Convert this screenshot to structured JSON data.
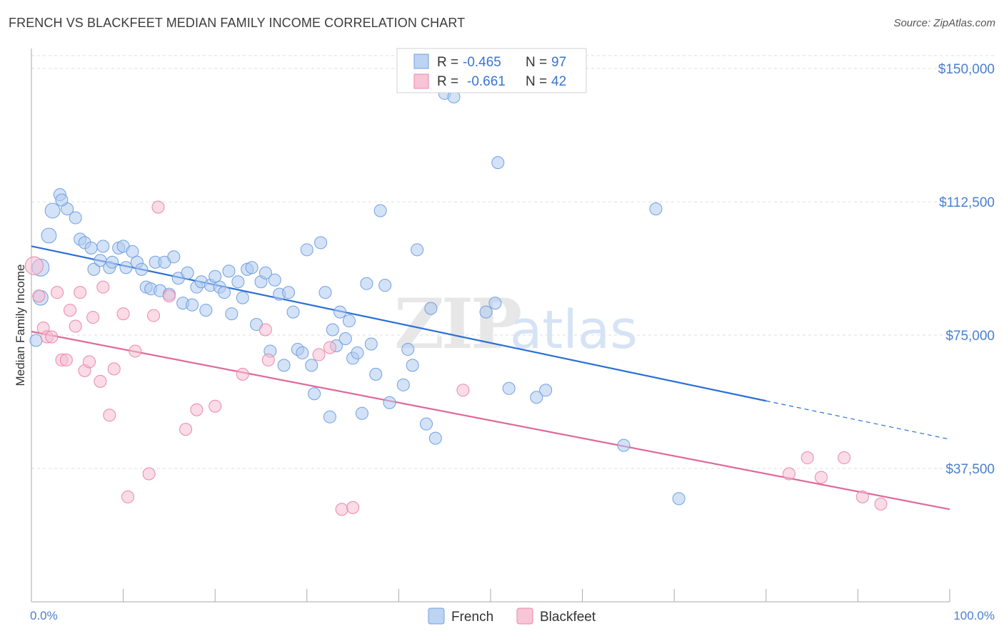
{
  "header": {
    "title": "FRENCH VS BLACKFEET MEDIAN FAMILY INCOME CORRELATION CHART",
    "source": "Source: ZipAtlas.com"
  },
  "watermark": {
    "zip": "ZIP",
    "atlas": "atlas"
  },
  "legend": {
    "r_label": "R =",
    "n_label": "N =",
    "rows": [
      {
        "series": "French",
        "r": "-0.465",
        "n": "97",
        "color": "#6fa0e0"
      },
      {
        "series": "Blackfeet",
        "r": "-0.661",
        "n": "42",
        "color": "#e889a8"
      }
    ]
  },
  "chart_data": {
    "type": "scatter",
    "title": "FRENCH VS BLACKFEET MEDIAN FAMILY INCOME CORRELATION CHART",
    "xlabel": "",
    "ylabel": "Median Family Income",
    "xlim": [
      0,
      100
    ],
    "ylim": [
      0,
      150000
    ],
    "x_tick_labels": [
      "0.0%",
      "100.0%"
    ],
    "y_ticks": [
      37500,
      75000,
      112500,
      150000
    ],
    "y_tick_labels": [
      "$37,500",
      "$75,000",
      "$112,500",
      "$150,000"
    ],
    "grid": true,
    "legend_position": "top-center",
    "series": [
      {
        "name": "French",
        "color": "#6fa0e0",
        "trend": {
          "x": [
            0,
            80
          ],
          "y": [
            100000,
            56500
          ],
          "dashed_to": [
            100,
            45700
          ]
        },
        "points": [
          {
            "x": 1.0,
            "y": 94000,
            "s": 2
          },
          {
            "x": 1.0,
            "y": 85500,
            "s": 1.5
          },
          {
            "x": 0.5,
            "y": 73500,
            "s": 1
          },
          {
            "x": 2.3,
            "y": 110000,
            "s": 1.5
          },
          {
            "x": 1.9,
            "y": 103000,
            "s": 1.5
          },
          {
            "x": 3.1,
            "y": 114500,
            "s": 1
          },
          {
            "x": 3.9,
            "y": 110500,
            "s": 1
          },
          {
            "x": 4.8,
            "y": 108000,
            "s": 1
          },
          {
            "x": 3.3,
            "y": 113000,
            "s": 1
          },
          {
            "x": 5.3,
            "y": 102000,
            "s": 1
          },
          {
            "x": 5.8,
            "y": 101000,
            "s": 1
          },
          {
            "x": 6.5,
            "y": 99500,
            "s": 1
          },
          {
            "x": 6.8,
            "y": 93500,
            "s": 1
          },
          {
            "x": 7.5,
            "y": 96000,
            "s": 1
          },
          {
            "x": 7.8,
            "y": 100000,
            "s": 1
          },
          {
            "x": 8.5,
            "y": 94000,
            "s": 1
          },
          {
            "x": 8.8,
            "y": 95500,
            "s": 1
          },
          {
            "x": 9.5,
            "y": 99500,
            "s": 1
          },
          {
            "x": 10.0,
            "y": 100000,
            "s": 1
          },
          {
            "x": 10.3,
            "y": 94000,
            "s": 1
          },
          {
            "x": 11.0,
            "y": 98500,
            "s": 1
          },
          {
            "x": 11.5,
            "y": 95500,
            "s": 1
          },
          {
            "x": 12.0,
            "y": 93500,
            "s": 1
          },
          {
            "x": 12.5,
            "y": 88500,
            "s": 1
          },
          {
            "x": 13.0,
            "y": 88000,
            "s": 1
          },
          {
            "x": 13.5,
            "y": 95500,
            "s": 1
          },
          {
            "x": 14.0,
            "y": 87500,
            "s": 1
          },
          {
            "x": 14.5,
            "y": 95500,
            "s": 1
          },
          {
            "x": 15.0,
            "y": 86500,
            "s": 1
          },
          {
            "x": 15.5,
            "y": 97000,
            "s": 1
          },
          {
            "x": 16.0,
            "y": 91000,
            "s": 1
          },
          {
            "x": 16.5,
            "y": 84000,
            "s": 1
          },
          {
            "x": 17.0,
            "y": 92500,
            "s": 1
          },
          {
            "x": 17.5,
            "y": 83500,
            "s": 1
          },
          {
            "x": 18.0,
            "y": 88500,
            "s": 1
          },
          {
            "x": 18.5,
            "y": 90000,
            "s": 1
          },
          {
            "x": 19.0,
            "y": 82000,
            "s": 1
          },
          {
            "x": 19.5,
            "y": 89000,
            "s": 1
          },
          {
            "x": 20.0,
            "y": 91500,
            "s": 1
          },
          {
            "x": 20.5,
            "y": 88500,
            "s": 1
          },
          {
            "x": 21.0,
            "y": 87000,
            "s": 1
          },
          {
            "x": 21.5,
            "y": 93000,
            "s": 1
          },
          {
            "x": 21.8,
            "y": 81000,
            "s": 1
          },
          {
            "x": 22.5,
            "y": 90000,
            "s": 1
          },
          {
            "x": 23.0,
            "y": 85500,
            "s": 1
          },
          {
            "x": 23.5,
            "y": 93500,
            "s": 1
          },
          {
            "x": 24.0,
            "y": 94000,
            "s": 1
          },
          {
            "x": 24.5,
            "y": 78000,
            "s": 1
          },
          {
            "x": 25.0,
            "y": 90000,
            "s": 1
          },
          {
            "x": 25.5,
            "y": 92500,
            "s": 1
          },
          {
            "x": 26.0,
            "y": 70500,
            "s": 1
          },
          {
            "x": 26.5,
            "y": 90500,
            "s": 1
          },
          {
            "x": 27.0,
            "y": 86500,
            "s": 1
          },
          {
            "x": 27.5,
            "y": 66500,
            "s": 1
          },
          {
            "x": 28.0,
            "y": 87000,
            "s": 1
          },
          {
            "x": 28.5,
            "y": 81500,
            "s": 1
          },
          {
            "x": 29.0,
            "y": 71000,
            "s": 1
          },
          {
            "x": 29.5,
            "y": 70000,
            "s": 1
          },
          {
            "x": 30.0,
            "y": 99000,
            "s": 1
          },
          {
            "x": 30.5,
            "y": 66500,
            "s": 1
          },
          {
            "x": 30.8,
            "y": 58500,
            "s": 1
          },
          {
            "x": 31.5,
            "y": 101000,
            "s": 1
          },
          {
            "x": 32.0,
            "y": 87000,
            "s": 1
          },
          {
            "x": 32.5,
            "y": 52000,
            "s": 1
          },
          {
            "x": 32.8,
            "y": 76500,
            "s": 1
          },
          {
            "x": 33.2,
            "y": 72000,
            "s": 1
          },
          {
            "x": 33.6,
            "y": 81500,
            "s": 1
          },
          {
            "x": 34.2,
            "y": 74000,
            "s": 1
          },
          {
            "x": 34.6,
            "y": 79000,
            "s": 1
          },
          {
            "x": 35.0,
            "y": 68500,
            "s": 1
          },
          {
            "x": 35.5,
            "y": 70000,
            "s": 1
          },
          {
            "x": 36.0,
            "y": 53000,
            "s": 1
          },
          {
            "x": 36.5,
            "y": 89500,
            "s": 1
          },
          {
            "x": 37.0,
            "y": 72500,
            "s": 1
          },
          {
            "x": 37.5,
            "y": 64000,
            "s": 1
          },
          {
            "x": 38.0,
            "y": 110000,
            "s": 1
          },
          {
            "x": 38.5,
            "y": 89000,
            "s": 1
          },
          {
            "x": 39.0,
            "y": 56000,
            "s": 1
          },
          {
            "x": 40.5,
            "y": 61000,
            "s": 1
          },
          {
            "x": 41.0,
            "y": 71000,
            "s": 1
          },
          {
            "x": 41.5,
            "y": 66500,
            "s": 1
          },
          {
            "x": 42.0,
            "y": 99000,
            "s": 1
          },
          {
            "x": 43.5,
            "y": 82500,
            "s": 1
          },
          {
            "x": 43.0,
            "y": 50000,
            "s": 1
          },
          {
            "x": 44.0,
            "y": 46000,
            "s": 1
          },
          {
            "x": 45.0,
            "y": 143000,
            "s": 1
          },
          {
            "x": 46.0,
            "y": 142000,
            "s": 1
          },
          {
            "x": 49.5,
            "y": 81500,
            "s": 1
          },
          {
            "x": 50.5,
            "y": 84000,
            "s": 1
          },
          {
            "x": 50.8,
            "y": 123500,
            "s": 1
          },
          {
            "x": 52.0,
            "y": 60000,
            "s": 1
          },
          {
            "x": 55.0,
            "y": 57500,
            "s": 1
          },
          {
            "x": 56.0,
            "y": 59500,
            "s": 1
          },
          {
            "x": 64.5,
            "y": 44000,
            "s": 1
          },
          {
            "x": 68.0,
            "y": 110500,
            "s": 1
          },
          {
            "x": 70.5,
            "y": 29000,
            "s": 1
          }
        ]
      },
      {
        "name": "Blackfeet",
        "color": "#e889a8",
        "trend": {
          "x": [
            0,
            100
          ],
          "y": [
            76000,
            26000
          ]
        },
        "points": [
          {
            "x": 0.3,
            "y": 94500,
            "s": 2.2
          },
          {
            "x": 0.8,
            "y": 86000,
            "s": 1
          },
          {
            "x": 1.3,
            "y": 77000,
            "s": 1
          },
          {
            "x": 1.7,
            "y": 74500,
            "s": 1
          },
          {
            "x": 2.2,
            "y": 74500,
            "s": 1
          },
          {
            "x": 2.8,
            "y": 87000,
            "s": 1
          },
          {
            "x": 3.3,
            "y": 68000,
            "s": 1
          },
          {
            "x": 3.8,
            "y": 68000,
            "s": 1
          },
          {
            "x": 4.2,
            "y": 82000,
            "s": 1
          },
          {
            "x": 4.8,
            "y": 77500,
            "s": 1
          },
          {
            "x": 5.3,
            "y": 87000,
            "s": 1
          },
          {
            "x": 5.8,
            "y": 65000,
            "s": 1
          },
          {
            "x": 6.3,
            "y": 67500,
            "s": 1
          },
          {
            "x": 6.7,
            "y": 80000,
            "s": 1
          },
          {
            "x": 7.5,
            "y": 62000,
            "s": 1
          },
          {
            "x": 7.8,
            "y": 88500,
            "s": 1
          },
          {
            "x": 8.5,
            "y": 52500,
            "s": 1
          },
          {
            "x": 9.0,
            "y": 65500,
            "s": 1
          },
          {
            "x": 10.0,
            "y": 81000,
            "s": 1
          },
          {
            "x": 10.5,
            "y": 29500,
            "s": 1
          },
          {
            "x": 11.3,
            "y": 70500,
            "s": 1
          },
          {
            "x": 12.8,
            "y": 36000,
            "s": 1
          },
          {
            "x": 13.3,
            "y": 80500,
            "s": 1
          },
          {
            "x": 13.8,
            "y": 111000,
            "s": 1
          },
          {
            "x": 15.0,
            "y": 86000,
            "s": 1
          },
          {
            "x": 16.8,
            "y": 48500,
            "s": 1
          },
          {
            "x": 18.0,
            "y": 54000,
            "s": 1
          },
          {
            "x": 20.0,
            "y": 55000,
            "s": 1
          },
          {
            "x": 23.0,
            "y": 64000,
            "s": 1
          },
          {
            "x": 25.5,
            "y": 76500,
            "s": 1
          },
          {
            "x": 25.8,
            "y": 68000,
            "s": 1
          },
          {
            "x": 31.3,
            "y": 69500,
            "s": 1
          },
          {
            "x": 32.5,
            "y": 71500,
            "s": 1
          },
          {
            "x": 33.8,
            "y": 26000,
            "s": 1
          },
          {
            "x": 35.0,
            "y": 26500,
            "s": 1
          },
          {
            "x": 47.0,
            "y": 59500,
            "s": 1
          },
          {
            "x": 82.5,
            "y": 36000,
            "s": 1
          },
          {
            "x": 84.5,
            "y": 40500,
            "s": 1
          },
          {
            "x": 86.0,
            "y": 35000,
            "s": 1
          },
          {
            "x": 88.5,
            "y": 40500,
            "s": 1
          },
          {
            "x": 90.5,
            "y": 29500,
            "s": 1
          },
          {
            "x": 92.5,
            "y": 27500,
            "s": 1
          }
        ]
      }
    ]
  }
}
